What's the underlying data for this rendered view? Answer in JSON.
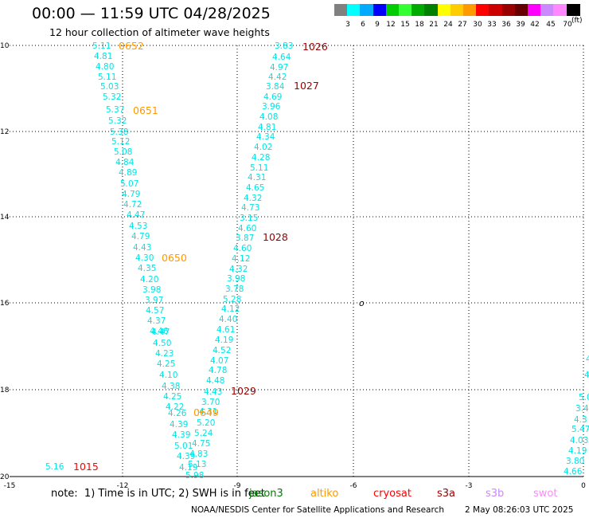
{
  "header": {
    "title": "00:00 — 11:59 UTC 04/28/2025",
    "subtitle": "12 hour collection of altimeter wave heights"
  },
  "legend": {
    "colors": [
      "#808080",
      "#00ffff",
      "#00aaff",
      "#0000ff",
      "#00cc00",
      "#33ff33",
      "#00aa00",
      "#008000",
      "#ffff00",
      "#ffcc00",
      "#ff9900",
      "#ff0000",
      "#cc0000",
      "#990000",
      "#660000",
      "#ff00ff",
      "#cc88ff",
      "#ff88ff",
      "#000000"
    ],
    "labels": [
      "3",
      "6",
      "9",
      "12",
      "15",
      "18",
      "21",
      "24",
      "27",
      "30",
      "33",
      "36",
      "39",
      "42",
      "45",
      "70"
    ],
    "unit": "(ft)"
  },
  "map": {
    "lat_ticks": [
      "10",
      "12",
      "14",
      "16",
      "18",
      "20"
    ],
    "lon_ticks": [
      "-15",
      "-12",
      "-9",
      "-6",
      "-3",
      "0"
    ],
    "island_symbol": "o",
    "wave_color": "#00e5e5",
    "tracks": [
      {
        "values": [
          "5.11",
          "4.81",
          "4.80",
          "5.11",
          "5.03",
          "5.32",
          "5.37",
          "5.32",
          "5.38",
          "5.12",
          "5.08",
          "4.84",
          "4.89",
          "5.07",
          "4.79",
          "4.72",
          "4.47",
          "4.53",
          "4.79",
          "4.43",
          "4.30",
          "4.35",
          "4.20",
          "3.98",
          "3.97",
          "4.57",
          "4.37",
          "4.46",
          "4.47",
          "4.50",
          "4.23",
          "4.25",
          "4.10",
          "4.38",
          "4.25",
          "4.22",
          "4.26",
          "4.39",
          "4.39",
          "5.01",
          "4.39",
          "4.19"
        ]
      },
      {
        "values": [
          "3.83",
          "4.64",
          "4.97",
          "4.42",
          "3.84",
          "4.69",
          "3.96",
          "4.08",
          "4.81",
          "4.34",
          "4.02",
          "4.28",
          "5.11",
          "4.31",
          "4.65",
          "4.32",
          "4.73",
          "3.15",
          "4.60",
          "3.87",
          "4.60",
          "4.12",
          "4.32",
          "3.98",
          "3.78",
          "5.28",
          "4.12",
          "4.40",
          "4.61",
          "4.19",
          "4.52",
          "4.07",
          "4.78",
          "4.48",
          "4.43",
          "3.70",
          "4.31",
          "5.20",
          "5.24",
          "4.75",
          "4.83",
          "5.13",
          "5.98"
        ]
      },
      {
        "values": [
          "4.",
          "4.",
          "5.0",
          "3.4",
          "4.3",
          "5.47",
          "4.03",
          "4.19",
          "3.80",
          "4.66"
        ]
      }
    ],
    "single_reading": "5.16",
    "time_labels": [
      {
        "text": "0652",
        "color": "#ff9900"
      },
      {
        "text": "0651",
        "color": "#ff9900"
      },
      {
        "text": "0650",
        "color": "#ff9900"
      },
      {
        "text": "0649",
        "color": "#ff9900"
      },
      {
        "text": "1026",
        "color": "#990000"
      },
      {
        "text": "1027",
        "color": "#990000"
      },
      {
        "text": "1028",
        "color": "#990000"
      },
      {
        "text": "1029",
        "color": "#990000"
      },
      {
        "text": "1015",
        "color": "#ff0000"
      }
    ]
  },
  "footer": {
    "note": "note:  1) Time is in UTC; 2) SWH is in feet",
    "satellites": [
      {
        "name": "jason3",
        "color": "#008000"
      },
      {
        "name": "altiko",
        "color": "#ff9900"
      },
      {
        "name": "cryosat",
        "color": "#ff0000"
      },
      {
        "name": "s3a",
        "color": "#990000"
      },
      {
        "name": "s3b",
        "color": "#cc88ff"
      },
      {
        "name": "swot",
        "color": "#ff88ff"
      }
    ],
    "credit": "NOAA/NESDIS Center for Satellite Applications and Research",
    "timestamp": "2 May 08:26:03 UTC 2025"
  }
}
